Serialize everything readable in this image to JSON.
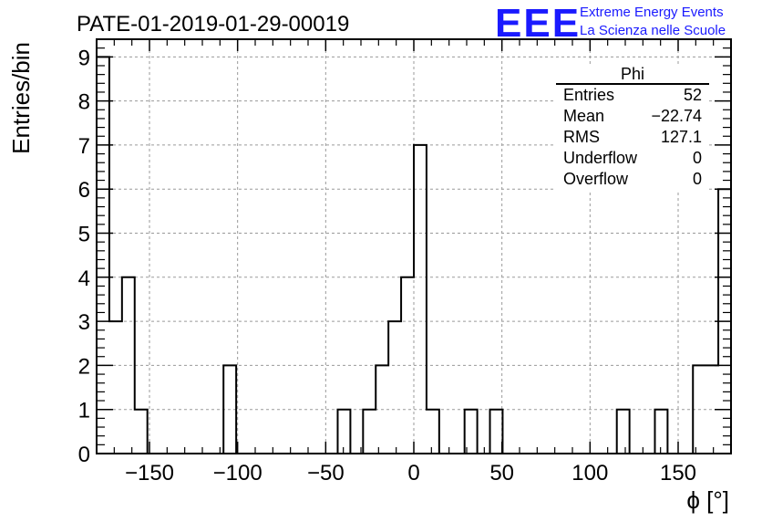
{
  "header": {
    "title": "PATE-01-2019-01-29-00019",
    "logo_letters": "EEE",
    "logo_line1": "Extreme Energy Events",
    "logo_line2": "La Scienza nelle Scuole"
  },
  "stats_box": {
    "title": "Phi",
    "rows": [
      {
        "label": "Entries",
        "value": "52"
      },
      {
        "label": "Mean",
        "value": "−22.74"
      },
      {
        "label": "RMS",
        "value": "127.1"
      },
      {
        "label": "Underflow",
        "value": "0"
      },
      {
        "label": "Overflow",
        "value": "0"
      }
    ]
  },
  "chart_data": {
    "type": "bar",
    "histogram": true,
    "xlabel": "ϕ [°]",
    "ylabel": "Entries/bin",
    "xlim": [
      -180,
      180
    ],
    "ylim": [
      0,
      9.4
    ],
    "bin_width": 7.2,
    "x_ticks": [
      -150,
      -100,
      -50,
      0,
      50,
      100,
      150
    ],
    "x_tick_labels": [
      "−150",
      "−100",
      "−50",
      "0",
      "50",
      "100",
      "150"
    ],
    "y_ticks": [
      0,
      1,
      2,
      3,
      4,
      5,
      6,
      7,
      8,
      9
    ],
    "y_tick_labels": [
      "0",
      "1",
      "2",
      "3",
      "4",
      "5",
      "6",
      "7",
      "8",
      "9"
    ],
    "grid": true,
    "line_color": "#000000",
    "bins": [
      {
        "x_low": -180.0,
        "count": 9
      },
      {
        "x_low": -172.8,
        "count": 3
      },
      {
        "x_low": -165.6,
        "count": 4
      },
      {
        "x_low": -158.4,
        "count": 1
      },
      {
        "x_low": -151.2,
        "count": 0
      },
      {
        "x_low": -144.0,
        "count": 0
      },
      {
        "x_low": -136.8,
        "count": 0
      },
      {
        "x_low": -129.6,
        "count": 0
      },
      {
        "x_low": -122.4,
        "count": 0
      },
      {
        "x_low": -115.2,
        "count": 0
      },
      {
        "x_low": -108.0,
        "count": 2
      },
      {
        "x_low": -100.8,
        "count": 0
      },
      {
        "x_low": -93.6,
        "count": 0
      },
      {
        "x_low": -86.4,
        "count": 0
      },
      {
        "x_low": -79.2,
        "count": 0
      },
      {
        "x_low": -72.0,
        "count": 0
      },
      {
        "x_low": -64.8,
        "count": 0
      },
      {
        "x_low": -57.6,
        "count": 0
      },
      {
        "x_low": -50.4,
        "count": 0
      },
      {
        "x_low": -43.2,
        "count": 1
      },
      {
        "x_low": -36.0,
        "count": 0
      },
      {
        "x_low": -28.8,
        "count": 1
      },
      {
        "x_low": -21.6,
        "count": 2
      },
      {
        "x_low": -14.4,
        "count": 3
      },
      {
        "x_low": -7.2,
        "count": 4
      },
      {
        "x_low": 0.0,
        "count": 7
      },
      {
        "x_low": 7.2,
        "count": 1
      },
      {
        "x_low": 14.4,
        "count": 0
      },
      {
        "x_low": 21.6,
        "count": 0
      },
      {
        "x_low": 28.8,
        "count": 1
      },
      {
        "x_low": 36.0,
        "count": 0
      },
      {
        "x_low": 43.2,
        "count": 1
      },
      {
        "x_low": 50.4,
        "count": 0
      },
      {
        "x_low": 57.6,
        "count": 0
      },
      {
        "x_low": 64.8,
        "count": 0
      },
      {
        "x_low": 72.0,
        "count": 0
      },
      {
        "x_low": 79.2,
        "count": 0
      },
      {
        "x_low": 86.4,
        "count": 0
      },
      {
        "x_low": 93.6,
        "count": 0
      },
      {
        "x_low": 100.8,
        "count": 0
      },
      {
        "x_low": 108.0,
        "count": 0
      },
      {
        "x_low": 115.2,
        "count": 1
      },
      {
        "x_low": 122.4,
        "count": 0
      },
      {
        "x_low": 129.6,
        "count": 0
      },
      {
        "x_low": 136.8,
        "count": 1
      },
      {
        "x_low": 144.0,
        "count": 0
      },
      {
        "x_low": 151.2,
        "count": 0
      },
      {
        "x_low": 158.4,
        "count": 2
      },
      {
        "x_low": 165.6,
        "count": 2
      },
      {
        "x_low": 172.8,
        "count": 6
      }
    ]
  },
  "colors": {
    "logo_blue": "#1a1aff",
    "grid": "#9a9a9a",
    "axis": "#000000"
  }
}
